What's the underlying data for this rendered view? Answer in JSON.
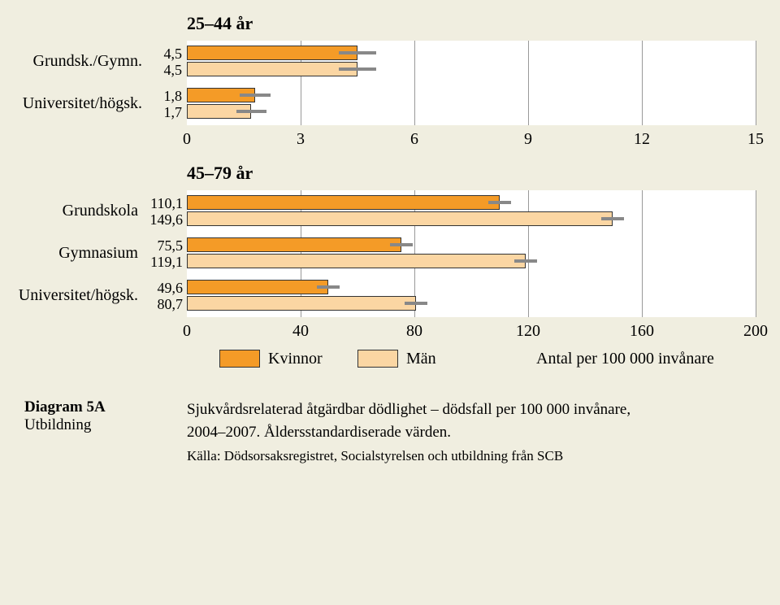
{
  "background_color": "#f0eee0",
  "plot_bg": "#ffffff",
  "gridline_color": "#999999",
  "bar_colors": {
    "kvinnor": "#f49b27",
    "man": "#fbd6a3"
  },
  "error_color": "#888888",
  "chart1": {
    "title": "25–44 år",
    "xlim": [
      0,
      15
    ],
    "xtick_step": 3,
    "xticks": [
      "0",
      "3",
      "6",
      "9",
      "12",
      "15"
    ],
    "categories": [
      {
        "label": "Grundsk./Gymn.",
        "kvinnor": 4.5,
        "man": 4.5,
        "kvinnor_label": "4,5",
        "man_label": "4,5",
        "kvinnor_err": 0.5,
        "man_err": 0.5
      },
      {
        "label": "Universitet/högsk.",
        "kvinnor": 1.8,
        "man": 1.7,
        "kvinnor_label": "1,8",
        "man_label": "1,7",
        "kvinnor_err": 0.4,
        "man_err": 0.4
      }
    ]
  },
  "chart2": {
    "title": "45–79 år",
    "xlim": [
      0,
      200
    ],
    "xtick_step": 40,
    "xticks": [
      "0",
      "40",
      "80",
      "120",
      "160",
      "200"
    ],
    "categories": [
      {
        "label": "Grundskola",
        "kvinnor": 110.1,
        "man": 149.6,
        "kvinnor_label": "110,1",
        "man_label": "149,6",
        "kvinnor_err": 4,
        "man_err": 4
      },
      {
        "label": "Gymnasium",
        "kvinnor": 75.5,
        "man": 119.1,
        "kvinnor_label": "75,5",
        "man_label": "119,1",
        "kvinnor_err": 4,
        "man_err": 4
      },
      {
        "label": "Universitet/högsk.",
        "kvinnor": 49.6,
        "man": 80.7,
        "kvinnor_label": "49,6",
        "man_label": "80,7",
        "kvinnor_err": 4,
        "man_err": 4
      }
    ]
  },
  "legend": {
    "kvinnor": "Kvinnor",
    "man": "Män",
    "note": "Antal per 100 000 invånare"
  },
  "caption": {
    "label1": "Diagram 5A",
    "label2": "Utbildning",
    "line1": "Sjukvårdsrelaterad åtgärdbar dödlighet – dödsfall per 100 000 invånare,",
    "line2": "2004–2007. Åldersstandardiserade värden.",
    "source": "Källa: Dödsorsaksregistret, Socialstyrelsen och utbildning från SCB"
  }
}
